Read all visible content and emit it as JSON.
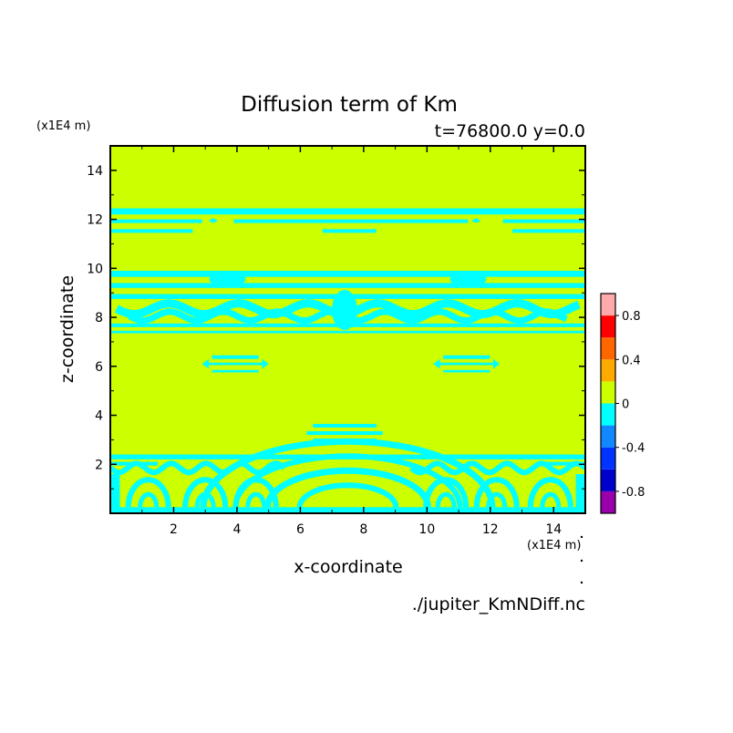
{
  "chart_data": {
    "type": "heatmap",
    "title": "Diffusion term of Km",
    "subtitle": "t=76800.0 y=0.0",
    "xlabel": "x-coordinate",
    "ylabel": "z-coordinate",
    "x_unit": "(x1E4 m)",
    "y_unit": "(x1E4 m)",
    "xlim": [
      0,
      15
    ],
    "ylim": [
      0,
      15
    ],
    "xticks": [
      2,
      4,
      6,
      8,
      10,
      12,
      14
    ],
    "yticks": [
      2,
      4,
      6,
      8,
      10,
      12,
      14
    ],
    "xtick_labels": [
      "2",
      "4",
      "6",
      "8",
      "10",
      "12",
      "14"
    ],
    "ytick_labels": [
      "2",
      "4",
      "6",
      "8",
      "10",
      "12",
      "14"
    ],
    "background_level": 0.1,
    "pattern_level": -0.1,
    "field_regions": [
      {
        "name": "upper-bands",
        "x": [
          0,
          15
        ],
        "z": [
          11.5,
          12.5
        ],
        "value": -0.1
      },
      {
        "name": "middle-bands",
        "x": [
          0,
          15
        ],
        "z": [
          7.3,
          9.9
        ],
        "value": -0.1
      },
      {
        "name": "left-lens",
        "x": [
          2.9,
          5.0
        ],
        "z": [
          5.7,
          6.5
        ],
        "value": -0.1
      },
      {
        "name": "right-lens",
        "x": [
          10.2,
          12.3
        ],
        "z": [
          5.7,
          6.5
        ],
        "value": -0.1
      },
      {
        "name": "lower-dome",
        "x": [
          6.0,
          8.8
        ],
        "z": [
          2.8,
          3.7
        ],
        "value": -0.1
      },
      {
        "name": "bottom-layer",
        "x": [
          0,
          15
        ],
        "z": [
          0,
          2.4
        ],
        "value": -0.1
      }
    ],
    "colorbar": {
      "levels": [
        -1.0,
        -0.8,
        -0.6,
        -0.4,
        -0.2,
        0,
        0.2,
        0.4,
        0.6,
        0.8,
        1.0
      ],
      "colors": [
        "#9900aa",
        "#0000cc",
        "#0033ff",
        "#1188ff",
        "#00ffff",
        "#ccff00",
        "#ffaa00",
        "#ff6600",
        "#ff0000",
        "#ffaaaa"
      ],
      "tick_labels": [
        "0.8",
        "0.4",
        "0",
        "-0.4",
        "-0.8"
      ],
      "tick_values": [
        0.8,
        0.4,
        0,
        -0.4,
        -0.8
      ]
    },
    "colors": {
      "background": "#ccff00",
      "pattern": "#00ffff"
    },
    "source": "./jupiter_KmNDiff.nc"
  }
}
